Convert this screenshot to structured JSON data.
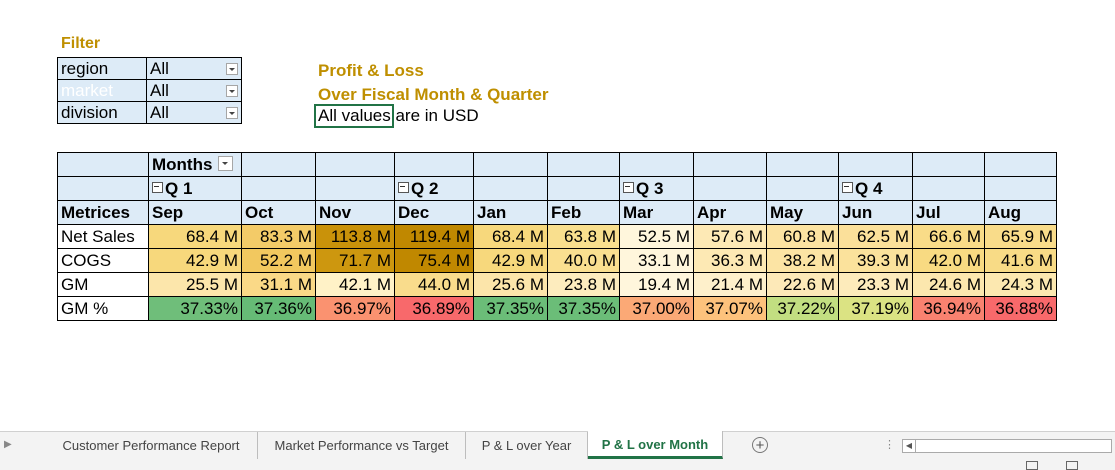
{
  "filter": {
    "title": "Filter",
    "rows": [
      {
        "label": "region",
        "value": "All"
      },
      {
        "label": "market",
        "value": "All"
      },
      {
        "label": "division",
        "value": "All"
      }
    ]
  },
  "report": {
    "title_line1": "Profit & Loss",
    "title_line2": "Over Fiscal Month & Quarter",
    "note": "All values are in USD"
  },
  "pivot": {
    "months_label": "Months",
    "row_header": "Metrices",
    "quarters": [
      "Q 1",
      "Q 2",
      "Q 3",
      "Q 4"
    ],
    "months": [
      "Sep",
      "Oct",
      "Nov",
      "Dec",
      "Jan",
      "Feb",
      "Mar",
      "Apr",
      "May",
      "Jun",
      "Jul",
      "Aug"
    ],
    "rows": [
      {
        "label": "Net Sales",
        "values": [
          "68.4 M",
          "83.3 M",
          "113.8 M",
          "119.4 M",
          "68.4 M",
          "63.8 M",
          "52.5 M",
          "57.6 M",
          "60.8 M",
          "62.5 M",
          "66.6 M",
          "65.9 M"
        ],
        "colors": [
          "#f7d87c",
          "#f3cb68",
          "#c9920a",
          "#c08800",
          "#f7d87c",
          "#f9df8e",
          "#fff6dc",
          "#fde9b5",
          "#fce3a2",
          "#fbe09a",
          "#f9dc88",
          "#f9dc8a"
        ]
      },
      {
        "label": "COGS",
        "values": [
          "42.9 M",
          "52.2 M",
          "71.7 M",
          "75.4 M",
          "42.9 M",
          "40.0 M",
          "33.1 M",
          "36.3 M",
          "38.2 M",
          "39.3 M",
          "42.0 M",
          "41.6 M"
        ],
        "colors": [
          "#f7d87c",
          "#f2c85f",
          "#cd970f",
          "#c08800",
          "#f7d87c",
          "#fadf90",
          "#fff6dc",
          "#fde9b4",
          "#fce4a4",
          "#fbe29c",
          "#f8da82",
          "#f8db86"
        ]
      },
      {
        "label": "GM",
        "values": [
          "25.5 M",
          "31.1 M",
          "42.1 M",
          "44.0 M",
          "25.6 M",
          "23.8 M",
          "19.4 M",
          "21.4 M",
          "22.6 M",
          "23.3 M",
          "24.6 M",
          "24.3 M"
        ],
        "colors": [
          "#fce6ab",
          "#fad987",
          "#fff2c7",
          "#f9dc8c",
          "#fce5aa",
          "#fdecbe",
          "#fff6dc",
          "#fef0cb",
          "#fde9b8",
          "#fdebbb",
          "#fce7ae",
          "#fce8b0"
        ]
      },
      {
        "label": "GM %",
        "values": [
          "37.33%",
          "37.36%",
          "36.97%",
          "36.89%",
          "37.35%",
          "37.35%",
          "37.00%",
          "37.07%",
          "37.22%",
          "37.19%",
          "36.94%",
          "36.88%"
        ],
        "colors": [
          "#6fbe7a",
          "#66bb76",
          "#fa9270",
          "#f8696b",
          "#6bbd78",
          "#6bbd78",
          "#fba976",
          "#fdc27c",
          "#c2de81",
          "#dbe383",
          "#f98270",
          "#f8696b"
        ]
      }
    ]
  },
  "tabs": [
    {
      "label": "Customer Performance Report",
      "active": false
    },
    {
      "label": "Market Performance vs Target",
      "active": false
    },
    {
      "label": "P & L over Year",
      "active": false
    },
    {
      "label": "P & L over Month",
      "active": true
    }
  ]
}
